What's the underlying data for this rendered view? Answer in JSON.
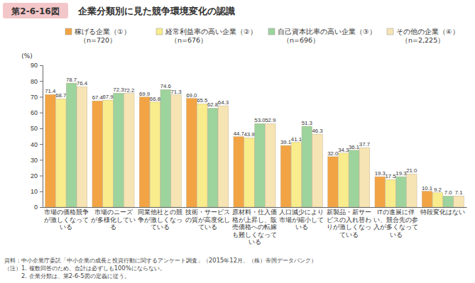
{
  "chart_data": {
    "type": "bar",
    "title": "企業分類別に見た競争環境変化の認識",
    "ylabel": "(%)",
    "annotations": [
      "第2-6-16図",
      "資料：中小企業庁委託「中小企業の成長と投資行動に関するアンケート調査」（2015年12月、（株）帝国データバンク）",
      "（注）1. 複数回答のため、合計は必ずしも100%にならない。",
      "　　　2. 企業分類は、第2-6-5図の定義に従う。"
    ],
    "categories": [
      "市場の価格競争\nが激しくなって\nいる",
      "市場のニーズ\nが多様化してい\nる",
      "同業他社との競\n争が激しくなっ\nている",
      "技術・サービス\nの質が高度化し\nている",
      "原材料・仕入価\n格が上昇し、販\n売価格への転嫁\nも難しくなって\nいる",
      "人口減少により\n市場が縮小して\nいる",
      "新製品・新サー\nビスの入れ替わ\nりが激しくなっ\nている",
      "ITの進展に伴\nい、競合先の参\n入が多くなって\nいる",
      "特段変化はない"
    ],
    "series": [
      {
        "name": "稼げる企業（①）\n（n=720）",
        "color": "#f2a444",
        "values": [
          71.4,
          67.4,
          69.9,
          69.0,
          44.7,
          39.1,
          32.0,
          19.3,
          10.1
        ],
        "value_labels": [
          "71.4",
          "67.4",
          "69.9",
          "69.0",
          "44.7",
          "39.1",
          "32.0",
          "19.3",
          "10.1"
        ]
      },
      {
        "name": "経常利益率の高い企業（②）\n（n=676）",
        "color": "#f8ec8c",
        "values": [
          68.7,
          67.9,
          66.8,
          65.5,
          43.9,
          41.1,
          34.3,
          17.5,
          9.2
        ],
        "value_labels": [
          "68.7",
          "67.9",
          "66.8",
          "65.5",
          "43.9",
          "41.1",
          "34.3",
          "17.5",
          "9.2"
        ]
      },
      {
        "name": "自己資本比率の高い企業（③）\n（n=696）",
        "color": "#9dd39c",
        "values": [
          78.7,
          72.3,
          74.6,
          62.8,
          53.0,
          51.3,
          36.1,
          19.3,
          7.0
        ],
        "value_labels": [
          "78.7",
          "72.3",
          "74.6",
          "62.8",
          "53.0",
          "51.3",
          "36.1",
          "19.3",
          "7.0"
        ]
      },
      {
        "name": "その他の企業（④）\n（n=2,225）",
        "color": "#f6e4b4",
        "values": [
          76.4,
          72.2,
          71.3,
          64.3,
          52.9,
          46.3,
          37.7,
          21.0,
          7.1
        ],
        "value_labels": [
          "76.4",
          "72.2",
          "71.3",
          "64.3",
          "52.9",
          "46.3",
          "37.7",
          "21.0",
          "7.1"
        ]
      }
    ],
    "ylim": [
      0,
      90
    ],
    "yticks": [
      0,
      10,
      20,
      30,
      40,
      50,
      60,
      70,
      80,
      90
    ],
    "grid": false,
    "legend": "top",
    "data_labels": true
  }
}
